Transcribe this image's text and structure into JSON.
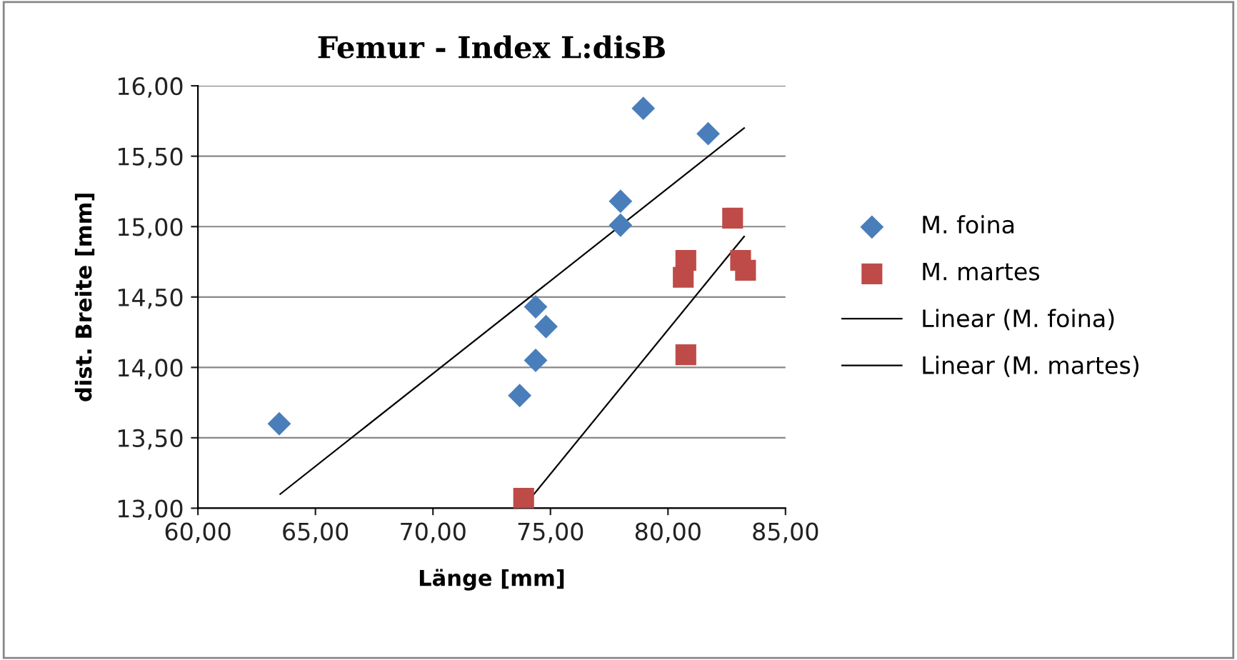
{
  "chart_data": {
    "type": "scatter",
    "title": "Femur - Index L:disB",
    "xlabel": "Länge [mm]",
    "ylabel": "dist. Breite [mm]",
    "xlim": [
      60,
      85
    ],
    "ylim": [
      13,
      16
    ],
    "xticks": [
      {
        "value": 60,
        "label": "60,00"
      },
      {
        "value": 65,
        "label": "65,00"
      },
      {
        "value": 70,
        "label": "70,00"
      },
      {
        "value": 75,
        "label": "75,00"
      },
      {
        "value": 80,
        "label": "80,00"
      },
      {
        "value": 85,
        "label": "85,00"
      }
    ],
    "yticks": [
      {
        "value": 13,
        "label": "13,00"
      },
      {
        "value": 13.5,
        "label": "13,50"
      },
      {
        "value": 14,
        "label": "14,00"
      },
      {
        "value": 14.5,
        "label": "14,50"
      },
      {
        "value": 15,
        "label": "15,00"
      },
      {
        "value": 15.5,
        "label": "15,50"
      },
      {
        "value": 16,
        "label": "16,00"
      }
    ],
    "grid": "y",
    "legend": "right",
    "series": [
      {
        "name": "M. foina",
        "marker": "diamond",
        "color": "#4a7ebb",
        "x": [
          63.46,
          73.69,
          74.37,
          74.37,
          74.81,
          77.98,
          77.98,
          78.95,
          81.71
        ],
        "values": [
          13.6,
          13.8,
          14.05,
          14.43,
          14.29,
          15.01,
          15.18,
          15.84,
          15.66
        ]
      },
      {
        "name": "M. martes",
        "marker": "square",
        "color": "#be4b48",
        "x": [
          73.86,
          80.76,
          80.65,
          80.76,
          82.75,
          83.09,
          83.3
        ],
        "values": [
          13.07,
          14.09,
          14.64,
          14.76,
          15.06,
          14.76,
          14.69
        ]
      },
      {
        "name": "Linear (M. foina)",
        "type": "line",
        "marker": "none",
        "line_style": "solid",
        "color": "#000000",
        "x": [
          63.5,
          83.24
        ],
        "values": [
          13.1,
          15.7
        ]
      },
      {
        "name": "Linear (M. martes)",
        "type": "line",
        "marker": "none",
        "line_style": "solid",
        "color": "#000000",
        "x": [
          73.86,
          83.24
        ],
        "values": [
          13.01,
          14.93
        ]
      }
    ]
  }
}
